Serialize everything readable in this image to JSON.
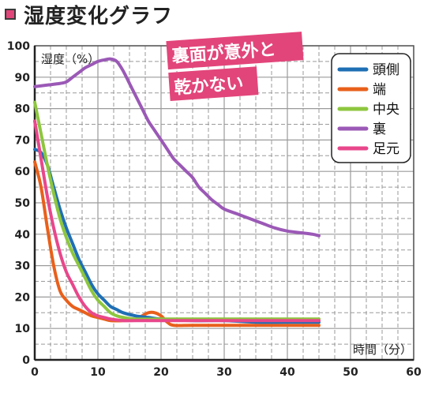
{
  "title": "湿度変化グラフ",
  "colors": {
    "accent": "#e2457a",
    "grid": "#9a9a9a",
    "callout_bg": "#e2457a"
  },
  "callout": {
    "lines": [
      "裏面が意外と",
      "乾かない"
    ]
  },
  "chart_data": {
    "type": "line",
    "title": "湿度変化グラフ",
    "xlabel": "時間（分）",
    "ylabel": "湿度（%）",
    "xlim": [
      0,
      60
    ],
    "ylim": [
      0,
      100
    ],
    "xticks": [
      0,
      10,
      20,
      30,
      40,
      50,
      60
    ],
    "yticks": [
      0,
      10,
      20,
      30,
      40,
      50,
      60,
      70,
      80,
      90,
      100
    ],
    "grid": true,
    "legend_position": "top-right",
    "series": [
      {
        "name": "頭側",
        "color": "#1f6fb4",
        "points": [
          [
            0,
            67
          ],
          [
            1,
            66
          ],
          [
            2,
            62
          ],
          [
            3,
            55
          ],
          [
            4,
            48
          ],
          [
            5,
            42
          ],
          [
            6,
            37
          ],
          [
            7,
            32
          ],
          [
            8,
            28
          ],
          [
            9,
            24
          ],
          [
            10,
            21
          ],
          [
            11,
            19
          ],
          [
            12,
            17
          ],
          [
            13,
            16
          ],
          [
            14,
            15
          ],
          [
            16,
            14
          ],
          [
            18,
            13.5
          ],
          [
            20,
            13
          ],
          [
            25,
            12.5
          ],
          [
            30,
            12.5
          ],
          [
            35,
            12
          ],
          [
            40,
            12
          ],
          [
            45,
            12
          ]
        ]
      },
      {
        "name": "端",
        "color": "#e8601c",
        "points": [
          [
            0,
            63
          ],
          [
            1,
            55
          ],
          [
            2,
            42
          ],
          [
            3,
            30
          ],
          [
            4,
            22
          ],
          [
            5,
            19
          ],
          [
            6,
            17
          ],
          [
            7,
            16
          ],
          [
            8,
            15
          ],
          [
            9,
            14
          ],
          [
            10,
            13.5
          ],
          [
            11,
            13
          ],
          [
            12,
            12.5
          ],
          [
            14,
            12.5
          ],
          [
            16,
            13
          ],
          [
            17,
            14
          ],
          [
            18,
            15
          ],
          [
            19,
            15
          ],
          [
            20,
            14
          ],
          [
            21,
            12
          ],
          [
            22,
            11
          ],
          [
            25,
            11
          ],
          [
            30,
            11
          ],
          [
            35,
            11
          ],
          [
            40,
            11
          ],
          [
            45,
            11
          ]
        ]
      },
      {
        "name": "中央",
        "color": "#8dc63f",
        "points": [
          [
            0,
            82
          ],
          [
            1,
            72
          ],
          [
            2,
            62
          ],
          [
            3,
            53
          ],
          [
            4,
            45
          ],
          [
            5,
            39
          ],
          [
            6,
            34
          ],
          [
            7,
            30
          ],
          [
            8,
            26
          ],
          [
            9,
            22
          ],
          [
            10,
            19
          ],
          [
            11,
            17
          ],
          [
            12,
            15
          ],
          [
            13,
            14
          ],
          [
            14,
            13.5
          ],
          [
            16,
            13
          ],
          [
            20,
            13
          ],
          [
            25,
            13
          ],
          [
            30,
            13
          ],
          [
            35,
            13
          ],
          [
            40,
            13
          ],
          [
            45,
            13
          ]
        ]
      },
      {
        "name": "裏",
        "color": "#9b59b6",
        "points": [
          [
            0,
            87
          ],
          [
            2,
            87.5
          ],
          [
            4,
            88
          ],
          [
            5,
            88.5
          ],
          [
            6,
            90
          ],
          [
            7,
            91.5
          ],
          [
            8,
            93
          ],
          [
            9,
            94
          ],
          [
            10,
            95
          ],
          [
            11,
            95.5
          ],
          [
            12,
            95.8
          ],
          [
            13,
            95
          ],
          [
            14,
            92
          ],
          [
            15,
            88
          ],
          [
            16,
            84
          ],
          [
            17,
            80
          ],
          [
            18,
            76
          ],
          [
            19,
            73
          ],
          [
            20,
            70
          ],
          [
            21,
            67
          ],
          [
            22,
            64
          ],
          [
            23,
            62
          ],
          [
            24,
            60
          ],
          [
            25,
            58
          ],
          [
            26,
            55
          ],
          [
            27,
            53
          ],
          [
            28,
            51
          ],
          [
            29,
            49.5
          ],
          [
            30,
            48
          ],
          [
            32,
            46.5
          ],
          [
            34,
            45
          ],
          [
            36,
            43.5
          ],
          [
            38,
            42
          ],
          [
            40,
            41
          ],
          [
            42,
            40.5
          ],
          [
            44,
            40
          ],
          [
            45,
            39.5
          ]
        ]
      },
      {
        "name": "足元",
        "color": "#e8478b",
        "points": [
          [
            0,
            76
          ],
          [
            1,
            64
          ],
          [
            2,
            52
          ],
          [
            3,
            42
          ],
          [
            4,
            34
          ],
          [
            5,
            28
          ],
          [
            6,
            24
          ],
          [
            7,
            20
          ],
          [
            8,
            17
          ],
          [
            9,
            15
          ],
          [
            10,
            14
          ],
          [
            11,
            13.5
          ],
          [
            12,
            13
          ],
          [
            14,
            12.5
          ],
          [
            16,
            12.5
          ],
          [
            20,
            12.5
          ],
          [
            25,
            12.5
          ],
          [
            30,
            12.5
          ],
          [
            35,
            12.5
          ],
          [
            40,
            12.5
          ],
          [
            45,
            12.5
          ]
        ]
      }
    ]
  }
}
